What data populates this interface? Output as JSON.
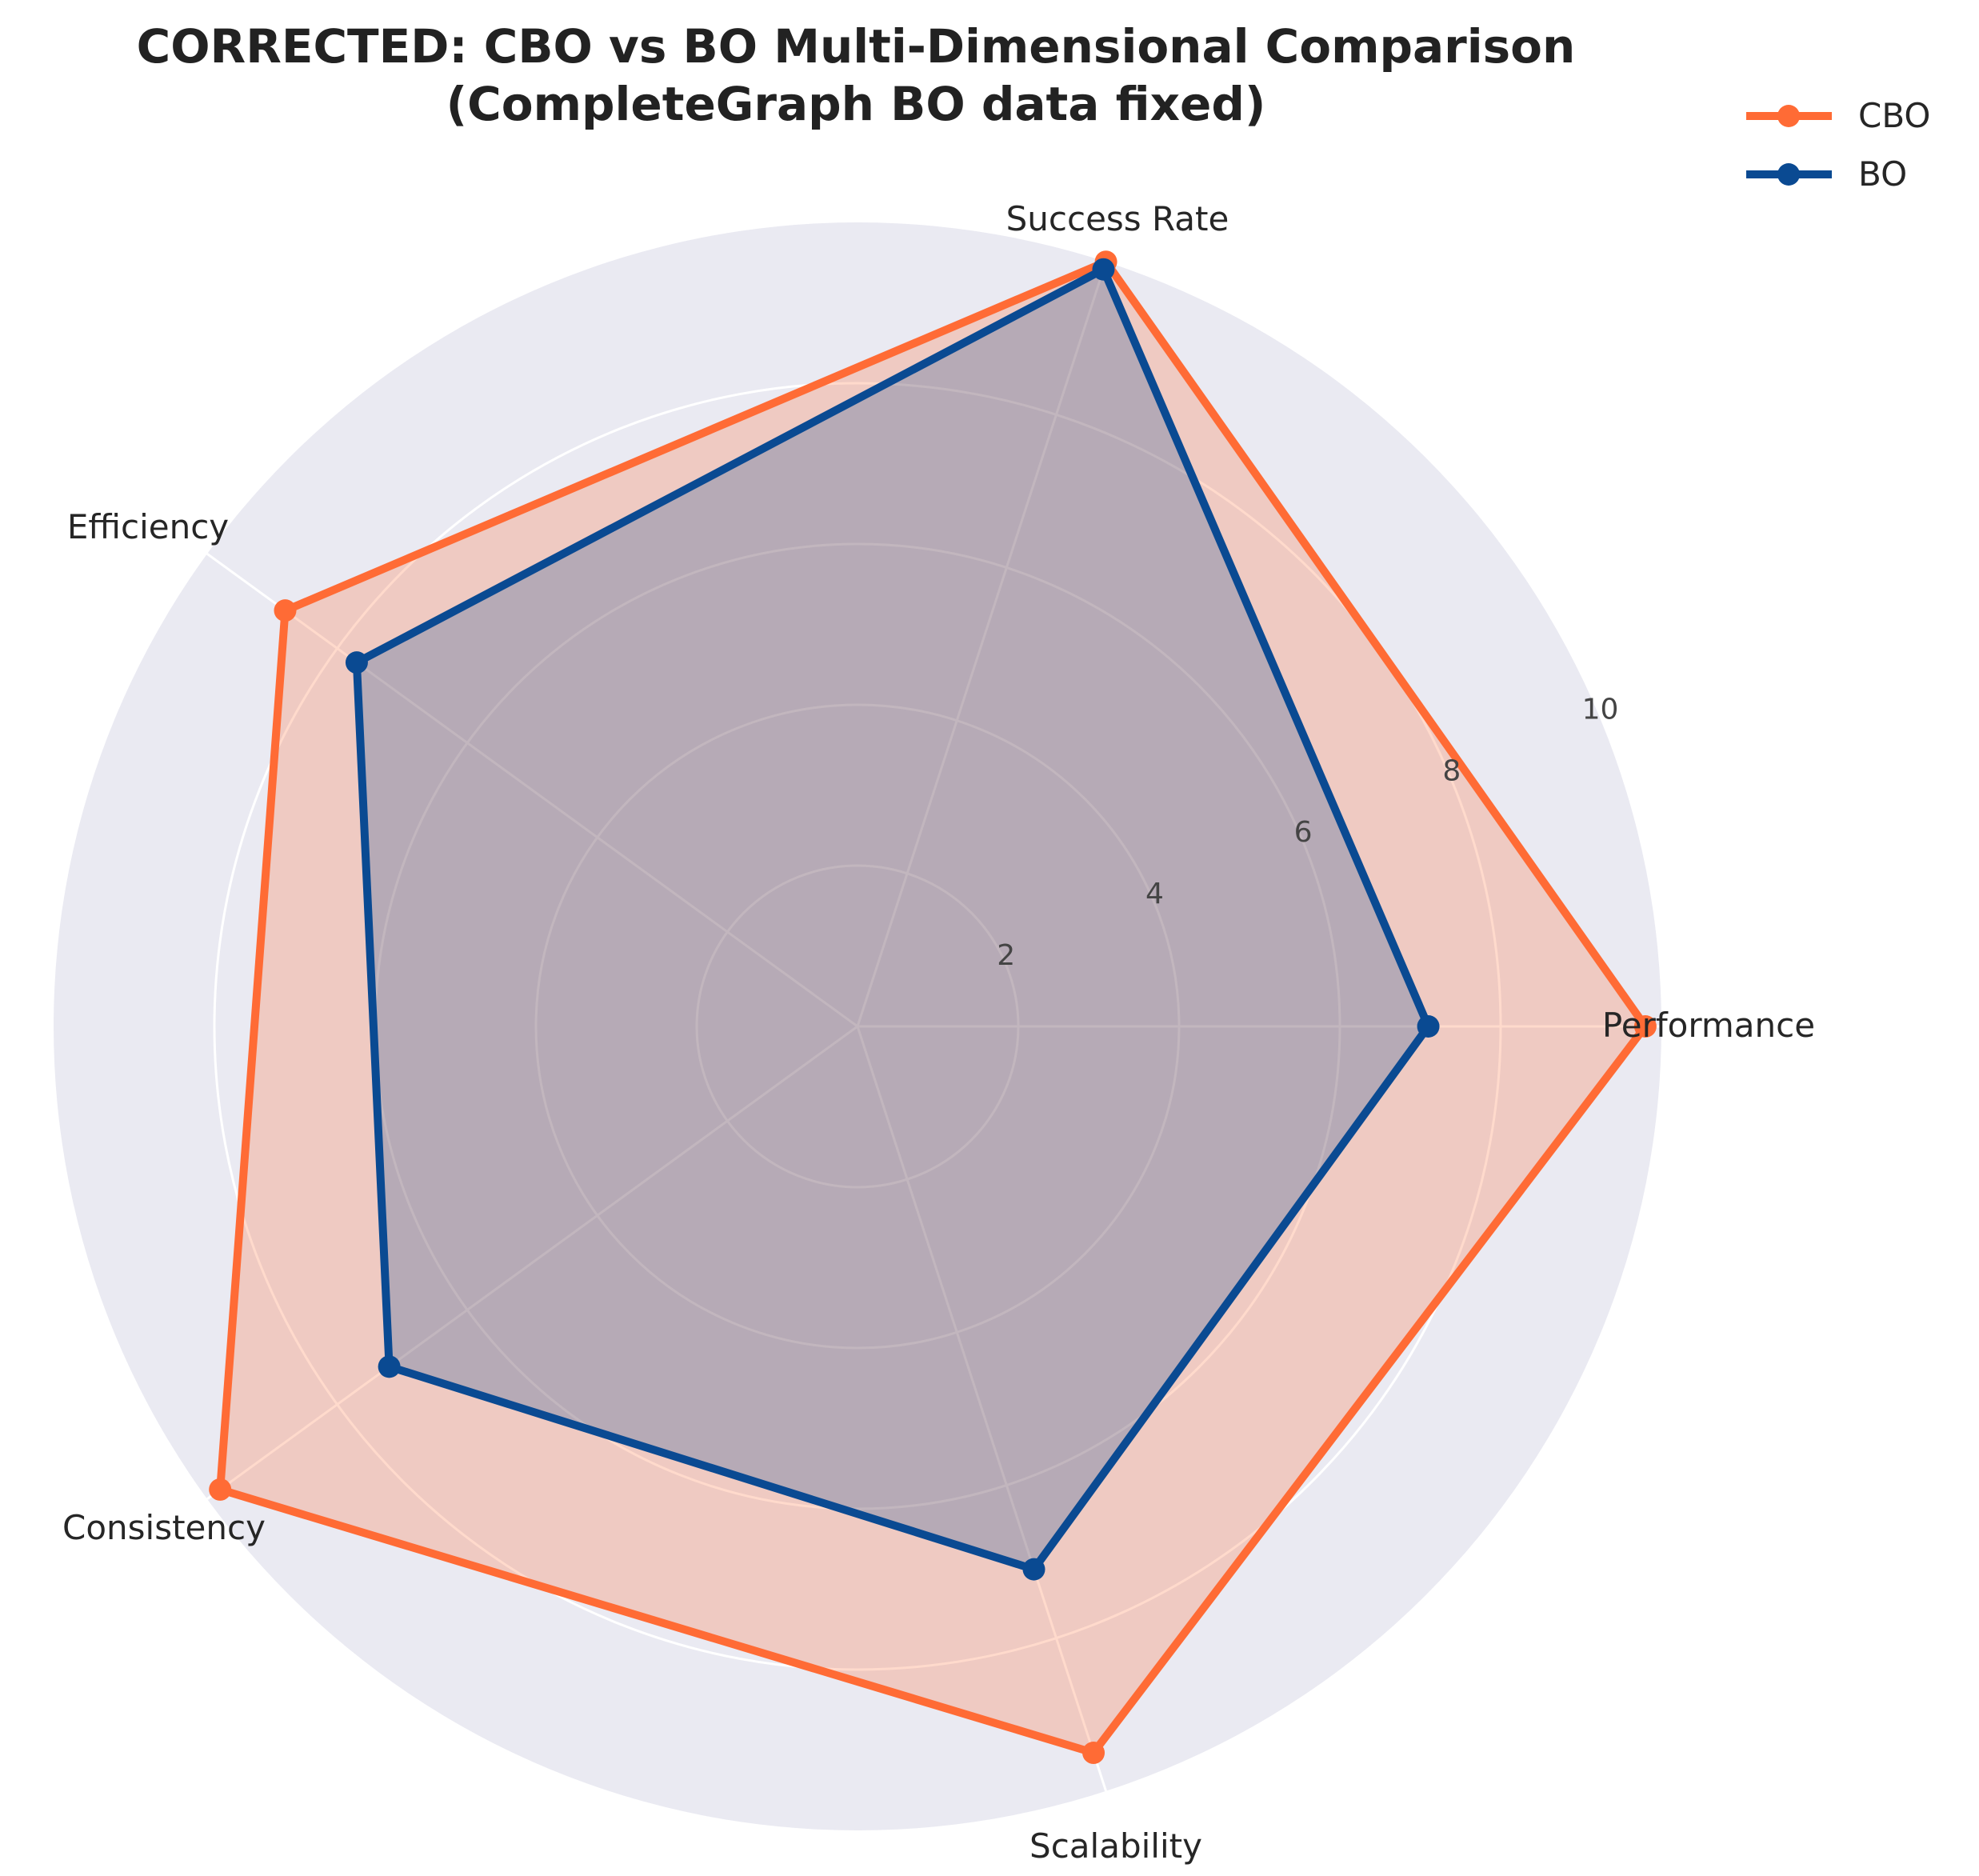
{
  "chart_data": {
    "type": "radar",
    "title": "CORRECTED: CBO vs BO Multi-Dimensional Comparison",
    "subtitle": "(CompleteGraph BO data fixed)",
    "categories": [
      "Performance",
      "Success Rate",
      "Efficiency",
      "Consistency",
      "Scalability"
    ],
    "r_ticks": [
      "2",
      "4",
      "6",
      "8",
      "10"
    ],
    "rlim": [
      0,
      10
    ],
    "grid": true,
    "legend_position": "top-right",
    "series": [
      {
        "name": "CBO",
        "color": "#ff6b35",
        "fill": "#ff6b35",
        "values": [
          9.8,
          10.0,
          8.8,
          9.8,
          9.5
        ]
      },
      {
        "name": "BO",
        "color": "#0a4a92",
        "fill": "#0a4a92",
        "values": [
          7.1,
          9.9,
          7.7,
          7.2,
          7.1
        ]
      }
    ]
  }
}
